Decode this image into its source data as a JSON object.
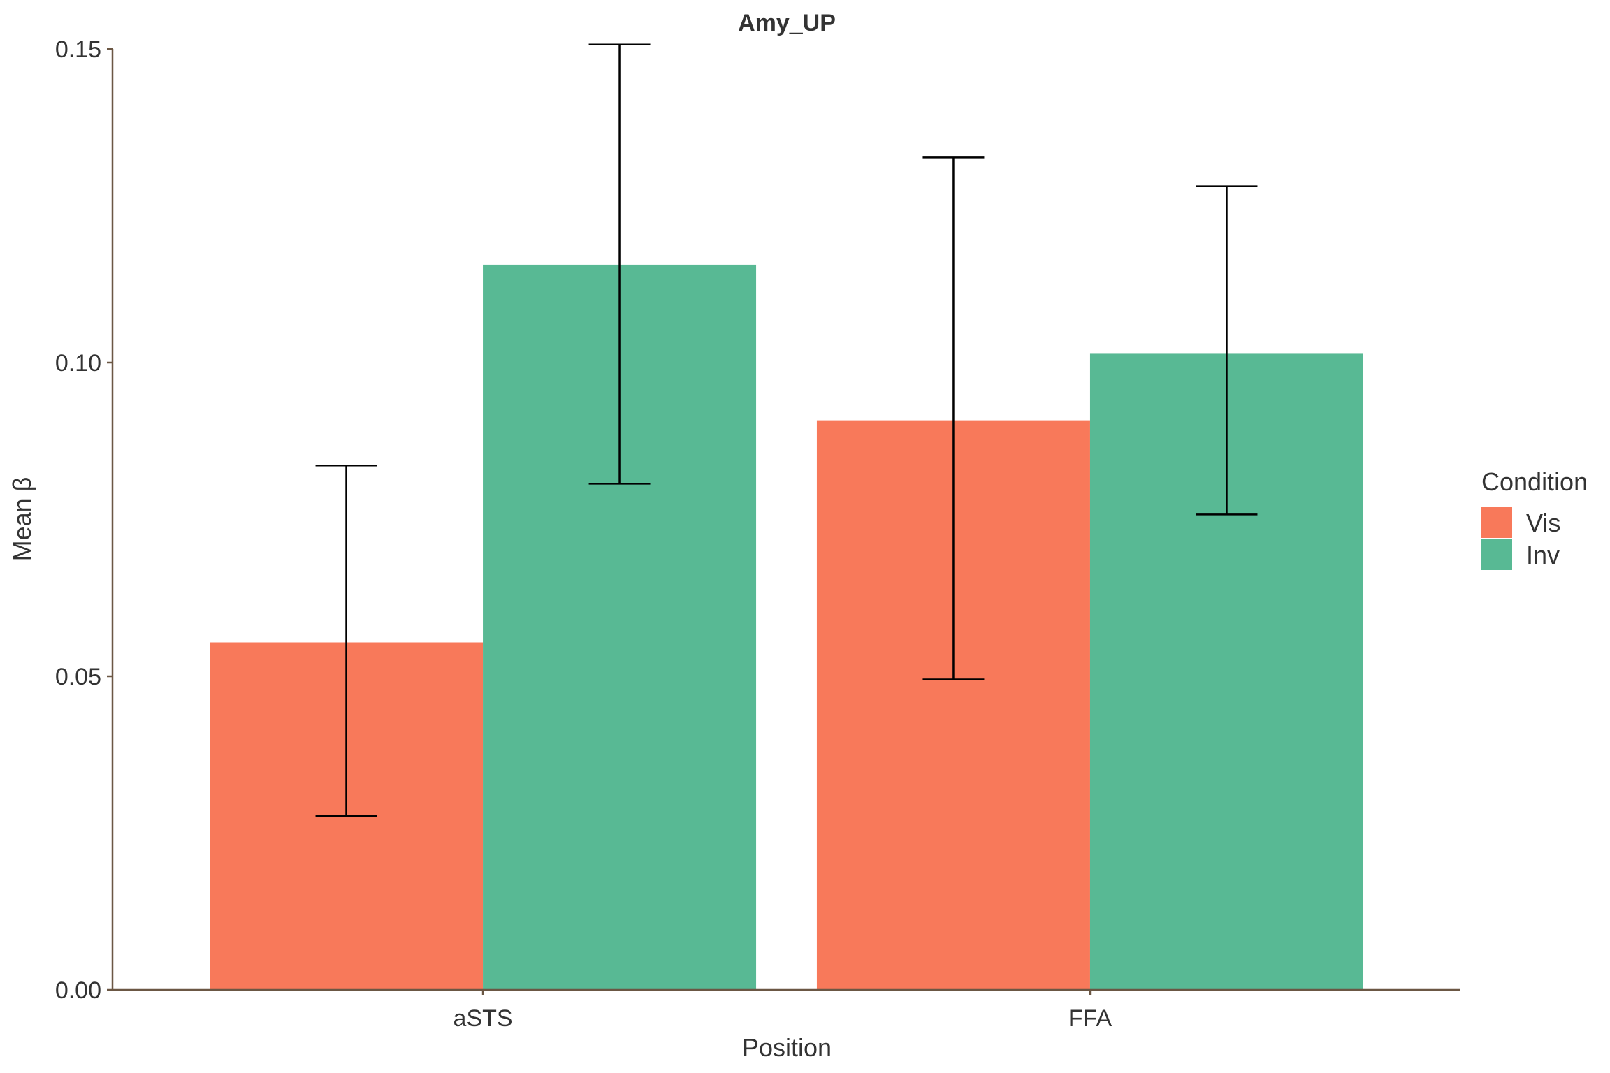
{
  "chart_data": {
    "type": "bar",
    "title": "Amy_UP",
    "xlabel": "Position",
    "ylabel": "Mean β",
    "categories": [
      "aSTS",
      "FFA"
    ],
    "series": [
      {
        "name": "Vis",
        "color": "#F8795A",
        "values": [
          0.0554,
          0.0908
        ],
        "error_low": [
          0.0277,
          0.0495
        ],
        "error_high": [
          0.0836,
          0.1327
        ]
      },
      {
        "name": "Inv",
        "color": "#58B994",
        "values": [
          0.1156,
          0.1014
        ],
        "error_low": [
          0.0807,
          0.0758
        ],
        "error_high": [
          0.1507,
          0.1281
        ]
      }
    ],
    "ylim": [
      0,
      0.15
    ],
    "yticks": [
      "0.00",
      "0.05",
      "0.10",
      "0.15"
    ],
    "ytick_values": [
      0,
      0.05,
      0.1,
      0.15
    ],
    "grid": false,
    "legend_title": "Condition",
    "legend_position": "right",
    "axis_color": "#6B5744",
    "error_bar_color": "#000000"
  }
}
